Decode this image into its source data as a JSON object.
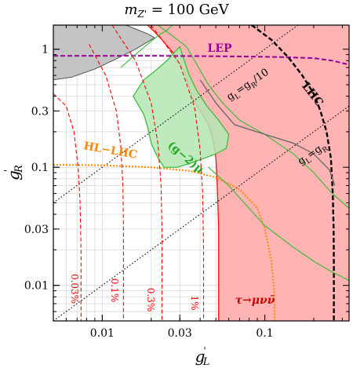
{
  "chart_data": {
    "type": "line",
    "title": "m",
    "title_sub": "Z'",
    "title_rest": " = 100 GeV",
    "xlabel": {
      "main": "g",
      "sup": "'",
      "sub": "L"
    },
    "ylabel": {
      "main": "g",
      "sup": "'",
      "sub": "R"
    },
    "xscale": "log",
    "yscale": "log",
    "xlim": [
      0.005,
      0.33
    ],
    "ylim": [
      0.005,
      1.6
    ],
    "xticks": [
      {
        "value": 0.01,
        "label": "0.01"
      },
      {
        "value": 0.03,
        "label": "0.03"
      },
      {
        "value": 0.1,
        "label": "0.1"
      }
    ],
    "yticks": [
      {
        "value": 0.01,
        "label": "0.01"
      },
      {
        "value": 0.03,
        "label": "0.03"
      },
      {
        "value": 0.1,
        "label": "0.1"
      },
      {
        "value": 0.3,
        "label": "0.3"
      },
      {
        "value": 1,
        "label": "1"
      }
    ],
    "grid": true,
    "colors": {
      "tau_region": "#ffb3b3",
      "tau_edge": "#ff0000",
      "gminus2_fill": "#b3e6b3",
      "gminus2_edge": "#33bb33",
      "grey_region": "#c4c4c4",
      "lep": "#990099",
      "lhc": "#000000",
      "hllhc": "#ff8800",
      "percent_lines": "#ff0000",
      "grey_curve": "#666666",
      "diagonal": "#000000"
    },
    "regions": [
      {
        "name": "τ→μνν̄",
        "label": "τ→μνν̄",
        "points": [
          [
            0.052,
            0.005
          ],
          [
            0.052,
            0.03
          ],
          [
            0.051,
            0.07
          ],
          [
            0.05,
            0.12
          ],
          [
            0.048,
            0.17
          ],
          [
            0.045,
            0.23
          ],
          [
            0.04,
            0.3
          ],
          [
            0.036,
            0.38
          ],
          [
            0.034,
            0.5
          ],
          [
            0.032,
            0.65
          ],
          [
            0.029,
            0.8
          ],
          [
            0.027,
            0.95
          ],
          [
            0.024,
            1.15
          ],
          [
            0.021,
            1.4
          ],
          [
            0.019,
            1.6
          ],
          [
            0.33,
            1.6
          ],
          [
            0.33,
            0.005
          ]
        ]
      },
      {
        "name": "(g−2)μ",
        "label": "(g−2)μ",
        "points": [
          [
            0.018,
            0.55
          ],
          [
            0.021,
            0.65
          ],
          [
            0.025,
            0.8
          ],
          [
            0.028,
            0.95
          ],
          [
            0.03,
            1.05
          ],
          [
            0.032,
            0.8
          ],
          [
            0.034,
            0.62
          ],
          [
            0.038,
            0.45
          ],
          [
            0.044,
            0.33
          ],
          [
            0.052,
            0.25
          ],
          [
            0.06,
            0.19
          ],
          [
            0.058,
            0.145
          ],
          [
            0.05,
            0.13
          ],
          [
            0.043,
            0.12
          ],
          [
            0.036,
            0.11
          ],
          [
            0.029,
            0.1
          ],
          [
            0.024,
            0.1
          ],
          [
            0.022,
            0.12
          ],
          [
            0.02,
            0.16
          ],
          [
            0.019,
            0.22
          ],
          [
            0.018,
            0.28
          ],
          [
            0.0155,
            0.4
          ]
        ]
      },
      {
        "name": "grey-excluded",
        "label": "",
        "points": [
          [
            0.005,
            1.6
          ],
          [
            0.014,
            1.6
          ],
          [
            0.019,
            1.35
          ],
          [
            0.021,
            1.25
          ],
          [
            0.016,
            1.0
          ],
          [
            0.012,
            0.82
          ],
          [
            0.009,
            0.68
          ],
          [
            0.0065,
            0.58
          ],
          [
            0.005,
            0.55
          ]
        ]
      }
    ],
    "series": [
      {
        "name": "LEP",
        "label": "LEP",
        "style": "dashed",
        "points": [
          [
            0.005,
            0.88
          ],
          [
            0.02,
            0.88
          ],
          [
            0.06,
            0.87
          ],
          [
            0.12,
            0.86
          ],
          [
            0.2,
            0.84
          ],
          [
            0.26,
            0.8
          ],
          [
            0.33,
            0.74
          ]
        ]
      },
      {
        "name": "LHC",
        "label": "LHC",
        "style": "dashed",
        "points": [
          [
            0.083,
            1.6
          ],
          [
            0.11,
            1.2
          ],
          [
            0.14,
            0.85
          ],
          [
            0.17,
            0.6
          ],
          [
            0.2,
            0.42
          ],
          [
            0.22,
            0.3
          ],
          [
            0.24,
            0.2
          ],
          [
            0.255,
            0.12
          ],
          [
            0.262,
            0.06
          ],
          [
            0.265,
            0.03
          ],
          [
            0.266,
            0.015
          ],
          [
            0.266,
            0.005
          ]
        ]
      },
      {
        "name": "HL-LHC",
        "label": "HL−LHC",
        "style": "dotted",
        "points": [
          [
            0.005,
            0.105
          ],
          [
            0.01,
            0.104
          ],
          [
            0.02,
            0.1
          ],
          [
            0.035,
            0.093
          ],
          [
            0.05,
            0.082
          ],
          [
            0.07,
            0.065
          ],
          [
            0.09,
            0.045
          ],
          [
            0.1,
            0.03
          ],
          [
            0.11,
            0.016
          ],
          [
            0.114,
            0.009
          ],
          [
            0.115,
            0.005
          ]
        ]
      },
      {
        "name": "0.03%",
        "label": "0.03%",
        "style": "dashed",
        "points": [
          [
            0.005,
            0.42
          ],
          [
            0.006,
            0.33
          ],
          [
            0.0067,
            0.2
          ],
          [
            0.0071,
            0.1
          ],
          [
            0.0073,
            0.05
          ],
          [
            0.0074,
            0.02
          ],
          [
            0.0074,
            0.005
          ]
        ]
      },
      {
        "name": "0.1%",
        "label": "0.1%",
        "style": "dashed",
        "points": [
          [
            0.0083,
            1.1
          ],
          [
            0.0105,
            0.6
          ],
          [
            0.0122,
            0.3
          ],
          [
            0.013,
            0.15
          ],
          [
            0.0134,
            0.07
          ],
          [
            0.0135,
            0.03
          ],
          [
            0.0135,
            0.005
          ]
        ]
      },
      {
        "name": "0.3%",
        "label": "0.3%",
        "style": "dashed",
        "points": [
          [
            0.0115,
            1.6
          ],
          [
            0.016,
            0.8
          ],
          [
            0.02,
            0.35
          ],
          [
            0.022,
            0.16
          ],
          [
            0.023,
            0.07
          ],
          [
            0.0233,
            0.03
          ],
          [
            0.0233,
            0.005
          ]
        ]
      },
      {
        "name": "1%",
        "label": "1%",
        "style": "dashed",
        "points": [
          [
            0.02,
            1.6
          ],
          [
            0.03,
            0.75
          ],
          [
            0.037,
            0.32
          ],
          [
            0.04,
            0.14
          ],
          [
            0.0415,
            0.06
          ],
          [
            0.042,
            0.02
          ],
          [
            0.042,
            0.005
          ]
        ]
      },
      {
        "name": "g−2 outer",
        "label": "",
        "style": "solid",
        "points": [
          [
            0.013,
            0.7
          ],
          [
            0.016,
            0.9
          ],
          [
            0.019,
            1.1
          ],
          [
            0.022,
            1.3
          ],
          [
            0.025,
            1.45
          ],
          [
            0.027,
            1.6
          ]
        ]
      },
      {
        "name": "g−2 right",
        "label": "",
        "style": "solid",
        "points": [
          [
            0.022,
            1.6
          ],
          [
            0.027,
            1.3
          ],
          [
            0.033,
            1.05
          ],
          [
            0.038,
            0.75
          ],
          [
            0.045,
            0.5
          ],
          [
            0.055,
            0.35
          ],
          [
            0.07,
            0.25
          ],
          [
            0.1,
            0.19
          ],
          [
            0.15,
            0.13
          ],
          [
            0.2,
            0.09
          ],
          [
            0.26,
            0.06
          ],
          [
            0.33,
            0.045
          ]
        ]
      },
      {
        "name": "g−2 lower",
        "label": "",
        "style": "solid",
        "points": [
          [
            0.045,
            0.1
          ],
          [
            0.06,
            0.07
          ],
          [
            0.08,
            0.045
          ],
          [
            0.1,
            0.032
          ],
          [
            0.15,
            0.021
          ],
          [
            0.2,
            0.016
          ],
          [
            0.26,
            0.013
          ],
          [
            0.33,
            0.011
          ]
        ]
      },
      {
        "name": "grey curve",
        "label": "",
        "style": "solid",
        "points": [
          [
            0.04,
            0.55
          ],
          [
            0.05,
            0.35
          ],
          [
            0.065,
            0.23
          ],
          [
            0.1,
            0.19
          ],
          [
            0.15,
            0.16
          ],
          [
            0.2,
            0.13
          ],
          [
            0.25,
            0.095
          ],
          [
            0.27,
            0.07
          ]
        ]
      }
    ],
    "reference_lines": [
      {
        "name": "gL=gR",
        "label": "g",
        "label_sub1": "L",
        "label_eq": "=g",
        "label_sub2": "R",
        "ratio": 1
      },
      {
        "name": "gL=gR/10",
        "label": "g",
        "label_sub1": "L",
        "label_eq": "=g",
        "label_sub2": "R",
        "label_tail": "/10",
        "ratio": 10
      }
    ]
  }
}
